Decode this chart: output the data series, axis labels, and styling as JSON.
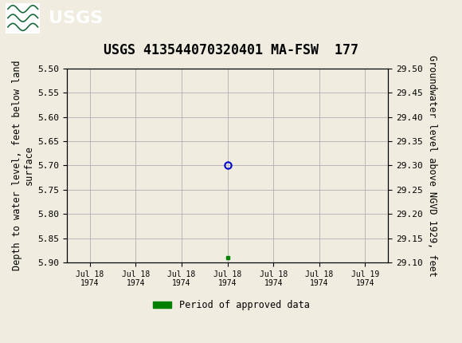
{
  "title": "USGS 413544070320401 MA-FSW  177",
  "title_fontsize": 12,
  "header_color": "#1a6b3c",
  "bg_color": "#f0ede0",
  "plot_bg_color": "#f0ede0",
  "grid_color": "#b0b0b0",
  "left_ylabel": "Depth to water level, feet below land\nsurface",
  "right_ylabel": "Groundwater level above NGVD 1929, feet",
  "ylabel_fontsize": 8.5,
  "ylim_left_top": 5.5,
  "ylim_left_bottom": 5.9,
  "ylim_right_top": 29.5,
  "ylim_right_bottom": 29.1,
  "yticks_left": [
    5.5,
    5.55,
    5.6,
    5.65,
    5.7,
    5.75,
    5.8,
    5.85,
    5.9
  ],
  "ytick_left_labels": [
    "5.50",
    "5.55",
    "5.60",
    "5.65",
    "5.70",
    "5.75",
    "5.80",
    "5.85",
    "5.90"
  ],
  "yticks_right": [
    29.5,
    29.45,
    29.4,
    29.35,
    29.3,
    29.25,
    29.2,
    29.15,
    29.1
  ],
  "ytick_right_labels": [
    "29.50",
    "29.45",
    "29.40",
    "29.35",
    "29.30",
    "29.25",
    "29.20",
    "29.15",
    "29.10"
  ],
  "xtick_positions": [
    0,
    1,
    2,
    3,
    4,
    5,
    6
  ],
  "xtick_labels": [
    "Jul 18\n1974",
    "Jul 18\n1974",
    "Jul 18\n1974",
    "Jul 18\n1974",
    "Jul 18\n1974",
    "Jul 18\n1974",
    "Jul 19\n1974"
  ],
  "point_x": 3.0,
  "point_y_circle": 5.7,
  "point_color_circle": "#0000cc",
  "point_x_green": 3.0,
  "point_y_green": 5.89,
  "point_color_green": "#008000",
  "legend_label": "Period of approved data",
  "legend_color": "#008000",
  "font_family": "monospace",
  "tick_fontsize": 8
}
